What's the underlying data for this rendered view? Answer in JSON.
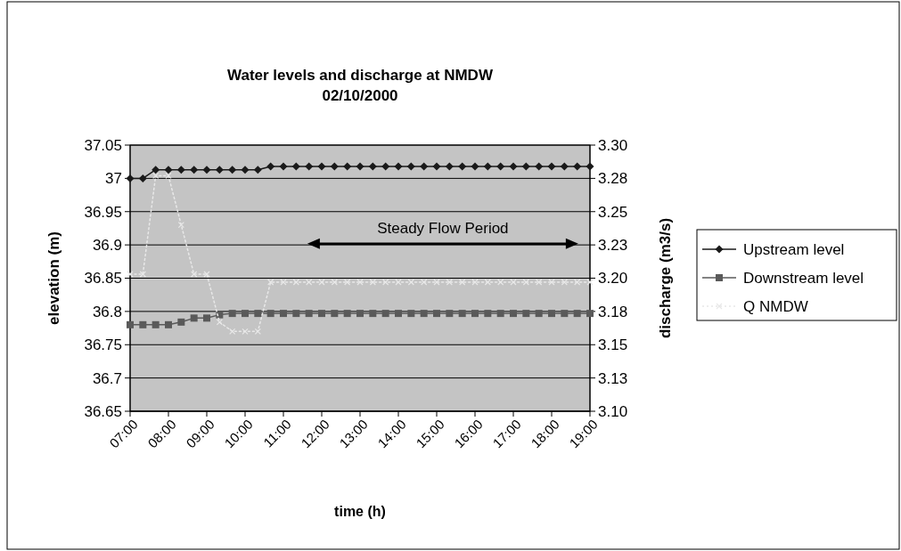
{
  "chart_data": {
    "type": "line",
    "title": "Water levels and discharge at NMDW",
    "subtitle": "02/10/2000",
    "xlabel": "time (h)",
    "ylabel": "elevation (m)",
    "y2label": "discharge (m3/s)",
    "x": [
      7,
      7.3333,
      7.6667,
      8,
      8.3333,
      8.6667,
      9,
      9.3333,
      9.6667,
      10,
      10.3333,
      10.6667,
      11,
      11.3333,
      11.6667,
      12,
      12.3333,
      12.6667,
      13,
      13.3333,
      13.6667,
      14,
      14.3333,
      14.6667,
      15,
      15.3333,
      15.6667,
      16,
      16.3333,
      16.6667,
      17,
      17.3333,
      17.6667,
      18,
      18.3333,
      18.6667,
      19
    ],
    "series": [
      {
        "name": "Upstream level",
        "color": "#1a1a1a",
        "marker": "diamond",
        "line_style": "solid",
        "values": [
          37.0,
          37.0,
          37.013,
          37.013,
          37.013,
          37.013,
          37.013,
          37.013,
          37.013,
          37.013,
          37.013,
          37.018,
          37.018,
          37.018,
          37.018,
          37.018,
          37.018,
          37.018,
          37.018,
          37.018,
          37.018,
          37.018,
          37.018,
          37.018,
          37.018,
          37.018,
          37.018,
          37.018,
          37.018,
          37.018,
          37.018,
          37.018,
          37.018,
          37.018,
          37.018,
          37.018,
          37.018
        ]
      },
      {
        "name": "Downstream level",
        "color": "#5a5a5a",
        "marker": "square",
        "line_style": "solid",
        "values": [
          36.78,
          36.78,
          36.78,
          36.78,
          36.784,
          36.79,
          36.79,
          36.795,
          36.797,
          36.797,
          36.797,
          36.797,
          36.797,
          36.797,
          36.797,
          36.797,
          36.797,
          36.797,
          36.797,
          36.797,
          36.797,
          36.797,
          36.797,
          36.797,
          36.797,
          36.797,
          36.797,
          36.797,
          36.797,
          36.797,
          36.797,
          36.797,
          36.797,
          36.797,
          36.797,
          36.797,
          36.797
        ]
      },
      {
        "name": "Q NMDW",
        "color": "#e8e8e8",
        "marker": "cross",
        "line_style": "dotted",
        "axis": "y2",
        "values": [
          3.203,
          3.203,
          3.277,
          3.277,
          3.24,
          3.203,
          3.203,
          3.167,
          3.16,
          3.16,
          3.16,
          3.197,
          3.197,
          3.197,
          3.197,
          3.197,
          3.197,
          3.197,
          3.197,
          3.197,
          3.197,
          3.197,
          3.197,
          3.197,
          3.197,
          3.197,
          3.197,
          3.197,
          3.197,
          3.197,
          3.197,
          3.197,
          3.197,
          3.197,
          3.197,
          3.197,
          3.197
        ]
      }
    ],
    "xlim": [
      7,
      19
    ],
    "xticks": [
      {
        "value": 7,
        "label": "07:00"
      },
      {
        "value": 8,
        "label": "08:00"
      },
      {
        "value": 9,
        "label": "09:00"
      },
      {
        "value": 10,
        "label": "10:00"
      },
      {
        "value": 11,
        "label": "11:00"
      },
      {
        "value": 12,
        "label": "12:00"
      },
      {
        "value": 13,
        "label": "13:00"
      },
      {
        "value": 14,
        "label": "14:00"
      },
      {
        "value": 15,
        "label": "15:00"
      },
      {
        "value": 16,
        "label": "16:00"
      },
      {
        "value": 17,
        "label": "17:00"
      },
      {
        "value": 18,
        "label": "18:00"
      },
      {
        "value": 19,
        "label": "19:00"
      }
    ],
    "ylim": [
      36.65,
      37.05
    ],
    "yticks": [
      36.65,
      36.7,
      36.75,
      36.8,
      36.85,
      36.9,
      36.95,
      37,
      37.05
    ],
    "y2lim": [
      3.1,
      3.3
    ],
    "y2ticks": [
      {
        "value": 3.1,
        "label": "3.10"
      },
      {
        "value": 3.125,
        "label": "3.13"
      },
      {
        "value": 3.15,
        "label": "3.15"
      },
      {
        "value": 3.175,
        "label": "3.18"
      },
      {
        "value": 3.2,
        "label": "3.20"
      },
      {
        "value": 3.225,
        "label": "3.23"
      },
      {
        "value": 3.25,
        "label": "3.25"
      },
      {
        "value": 3.275,
        "label": "3.28"
      },
      {
        "value": 3.3,
        "label": "3.30"
      }
    ],
    "grid": "y",
    "legend": "right",
    "annotations": [
      "Steady Flow Period"
    ]
  }
}
